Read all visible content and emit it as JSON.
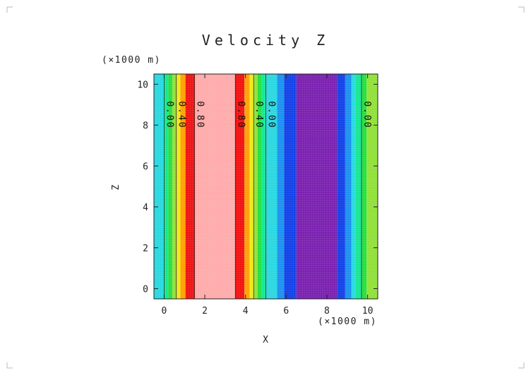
{
  "chart_data": {
    "type": "heatmap",
    "title": "Velocity Z",
    "xlabel": "X",
    "ylabel": "Z",
    "x_unit": "(×1000 m)",
    "y_unit": "(×1000 m)",
    "xlim": [
      -0.5,
      10.5
    ],
    "ylim": [
      -0.5,
      10.5
    ],
    "x_ticks": [
      0,
      2,
      4,
      6,
      8,
      10
    ],
    "y_ticks": [
      0,
      2,
      4,
      6,
      8,
      10
    ],
    "x_tick_labels": [
      "0",
      "2",
      "4",
      "6",
      "8",
      "10"
    ],
    "y_tick_labels": [
      "0",
      "2",
      "4",
      "6",
      "8",
      "10"
    ],
    "bands": [
      {
        "x0": -0.5,
        "x1": 0.0,
        "color": "#28d8e0"
      },
      {
        "x0": 0.0,
        "x1": 0.2,
        "color": "#10e890"
      },
      {
        "x0": 0.2,
        "x1": 0.4,
        "color": "#22e040"
      },
      {
        "x0": 0.4,
        "x1": 0.6,
        "color": "#90e038"
      },
      {
        "x0": 0.6,
        "x1": 0.8,
        "color": "#f0e818"
      },
      {
        "x0": 0.8,
        "x1": 1.05,
        "color": "#ffa000"
      },
      {
        "x0": 1.05,
        "x1": 1.5,
        "color": "#f01010"
      },
      {
        "x0": 1.5,
        "x1": 3.5,
        "color": "#ffaaaa"
      },
      {
        "x0": 3.5,
        "x1": 3.95,
        "color": "#f01010"
      },
      {
        "x0": 3.95,
        "x1": 4.2,
        "color": "#ffa000"
      },
      {
        "x0": 4.2,
        "x1": 4.4,
        "color": "#f0e818"
      },
      {
        "x0": 4.4,
        "x1": 4.6,
        "color": "#90e038"
      },
      {
        "x0": 4.6,
        "x1": 4.8,
        "color": "#22e040"
      },
      {
        "x0": 4.8,
        "x1": 5.0,
        "color": "#10e890"
      },
      {
        "x0": 5.0,
        "x1": 5.55,
        "color": "#28d8e0"
      },
      {
        "x0": 5.55,
        "x1": 5.9,
        "color": "#1890f0"
      },
      {
        "x0": 5.9,
        "x1": 6.5,
        "color": "#1040e8"
      },
      {
        "x0": 6.5,
        "x1": 8.5,
        "color": "#7a1fb0"
      },
      {
        "x0": 8.5,
        "x1": 8.9,
        "color": "#1040e8"
      },
      {
        "x0": 8.9,
        "x1": 9.2,
        "color": "#1890f0"
      },
      {
        "x0": 9.2,
        "x1": 9.4,
        "color": "#28d8e0"
      },
      {
        "x0": 9.4,
        "x1": 9.7,
        "color": "#10e890"
      },
      {
        "x0": 9.7,
        "x1": 9.95,
        "color": "#22e040"
      },
      {
        "x0": 9.95,
        "x1": 10.5,
        "color": "#90e038"
      }
    ],
    "contour_lines": [
      0.0,
      0.6,
      1.5,
      3.5,
      4.4,
      5.0,
      9.7
    ],
    "contour_labels": [
      {
        "x": 0.0,
        "y": 8.5,
        "text": "0.00"
      },
      {
        "x": 0.6,
        "y": 8.5,
        "text": "0.40"
      },
      {
        "x": 1.5,
        "y": 8.5,
        "text": "0.80"
      },
      {
        "x": 3.5,
        "y": 8.5,
        "text": "0.80"
      },
      {
        "x": 4.4,
        "y": 8.5,
        "text": "0.40"
      },
      {
        "x": 5.0,
        "y": 8.5,
        "text": "0.00"
      },
      {
        "x": 9.7,
        "y": 8.5,
        "text": "0.00"
      }
    ]
  }
}
